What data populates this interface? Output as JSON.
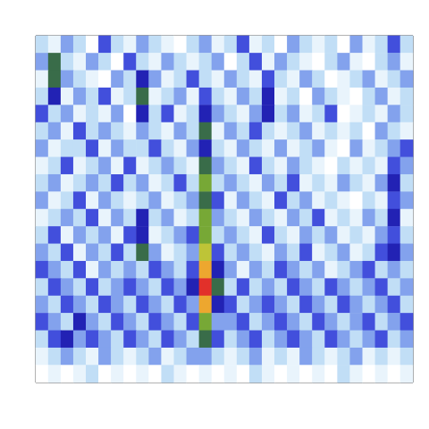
{
  "chart_data": {
    "type": "heatmap",
    "tick_labels": false,
    "grid": false,
    "zlim": [
      0,
      10
    ],
    "z": [
      [
        2,
        1,
        3,
        2,
        0,
        4,
        2,
        1,
        3,
        2,
        1,
        0,
        2,
        3,
        1,
        2,
        4,
        1,
        2,
        0,
        3,
        2,
        1,
        2,
        0,
        3,
        1,
        2,
        4,
        2
      ],
      [
        3,
        6,
        2,
        1,
        3,
        2,
        0,
        4,
        2,
        1,
        3,
        2,
        1,
        2,
        3,
        0,
        2,
        4,
        1,
        3,
        2,
        1,
        0,
        2,
        3,
        1,
        0,
        2,
        3,
        1
      ],
      [
        1,
        6,
        3,
        2,
        1,
        0,
        3,
        2,
        5,
        3,
        1,
        2,
        4,
        2,
        1,
        3,
        2,
        1,
        4,
        2,
        1,
        3,
        2,
        0,
        1,
        2,
        3,
        1,
        2,
        3
      ],
      [
        2,
        5,
        1,
        3,
        2,
        4,
        1,
        2,
        6,
        1,
        2,
        3,
        1,
        4,
        2,
        1,
        3,
        2,
        5,
        1,
        2,
        0,
        3,
        2,
        1,
        0,
        2,
        3,
        1,
        2
      ],
      [
        4,
        2,
        3,
        1,
        2,
        1,
        3,
        0,
        5,
        2,
        4,
        1,
        2,
        5,
        3,
        2,
        1,
        3,
        5,
        2,
        3,
        1,
        2,
        4,
        0,
        1,
        2,
        1,
        3,
        2
      ],
      [
        2,
        3,
        1,
        4,
        2,
        3,
        2,
        1,
        3,
        2,
        1,
        3,
        2,
        6,
        1,
        3,
        2,
        4,
        2,
        1,
        2,
        3,
        1,
        2,
        1,
        2,
        0,
        3,
        2,
        1
      ],
      [
        3,
        1,
        2,
        2,
        4,
        1,
        3,
        2,
        2,
        4,
        2,
        1,
        3,
        5,
        2,
        1,
        3,
        2,
        1,
        3,
        1,
        2,
        3,
        1,
        0,
        3,
        1,
        2,
        3,
        4
      ],
      [
        1,
        2,
        4,
        1,
        2,
        3,
        1,
        4,
        1,
        2,
        3,
        2,
        1,
        6,
        3,
        2,
        1,
        4,
        2,
        1,
        3,
        2,
        1,
        0,
        2,
        1,
        2,
        1,
        4,
        3
      ],
      [
        2,
        3,
        1,
        2,
        3,
        2,
        4,
        2,
        3,
        1,
        2,
        4,
        2,
        7,
        2,
        3,
        2,
        1,
        3,
        2,
        4,
        1,
        2,
        1,
        3,
        2,
        1,
        3,
        5,
        2
      ],
      [
        3,
        1,
        2,
        4,
        1,
        3,
        2,
        1,
        2,
        3,
        1,
        2,
        3,
        6,
        4,
        1,
        3,
        2,
        1,
        4,
        2,
        3,
        1,
        2,
        1,
        0,
        2,
        1,
        4,
        3
      ],
      [
        1,
        2,
        3,
        2,
        4,
        1,
        3,
        2,
        5,
        2,
        3,
        1,
        2,
        7,
        3,
        2,
        1,
        3,
        2,
        1,
        3,
        2,
        4,
        1,
        2,
        1,
        3,
        2,
        5,
        1
      ],
      [
        2,
        4,
        1,
        3,
        2,
        3,
        1,
        4,
        5,
        1,
        2,
        3,
        4,
        7,
        2,
        3,
        2,
        1,
        4,
        2,
        1,
        3,
        2,
        3,
        1,
        2,
        1,
        3,
        4,
        2
      ],
      [
        3,
        2,
        4,
        1,
        3,
        2,
        4,
        2,
        6,
        3,
        1,
        2,
        3,
        8,
        4,
        2,
        3,
        2,
        1,
        3,
        2,
        4,
        1,
        2,
        3,
        1,
        2,
        4,
        5,
        3
      ],
      [
        4,
        3,
        2,
        4,
        1,
        3,
        2,
        3,
        2,
        4,
        3,
        2,
        4,
        9,
        5,
        3,
        1,
        3,
        2,
        4,
        3,
        2,
        3,
        1,
        2,
        3,
        4,
        2,
        3,
        2
      ],
      [
        2,
        4,
        3,
        2,
        4,
        2,
        3,
        4,
        3,
        2,
        4,
        3,
        5,
        10,
        6,
        2,
        4,
        2,
        3,
        2,
        4,
        3,
        2,
        4,
        3,
        2,
        3,
        4,
        2,
        3
      ],
      [
        3,
        2,
        4,
        3,
        2,
        4,
        3,
        2,
        4,
        3,
        2,
        4,
        3,
        9,
        5,
        4,
        2,
        3,
        4,
        3,
        2,
        4,
        3,
        2,
        4,
        3,
        2,
        3,
        4,
        2
      ],
      [
        4,
        3,
        2,
        5,
        3,
        2,
        4,
        3,
        2,
        4,
        3,
        2,
        4,
        7,
        3,
        3,
        4,
        2,
        3,
        4,
        3,
        2,
        4,
        3,
        2,
        3,
        4,
        2,
        3,
        4
      ],
      [
        2,
        4,
        5,
        3,
        4,
        3,
        2,
        4,
        3,
        2,
        4,
        3,
        2,
        6,
        4,
        2,
        3,
        4,
        2,
        3,
        4,
        3,
        2,
        4,
        3,
        2,
        3,
        4,
        2,
        3
      ],
      [
        1,
        2,
        3,
        2,
        1,
        3,
        2,
        1,
        2,
        3,
        1,
        2,
        3,
        3,
        2,
        1,
        2,
        3,
        1,
        2,
        1,
        3,
        2,
        1,
        2,
        3,
        1,
        2,
        1,
        2
      ],
      [
        0,
        1,
        0,
        1,
        2,
        0,
        1,
        0,
        1,
        0,
        2,
        1,
        0,
        1,
        0,
        1,
        0,
        2,
        1,
        0,
        1,
        0,
        1,
        0,
        2,
        1,
        0,
        1,
        0,
        1
      ]
    ]
  }
}
